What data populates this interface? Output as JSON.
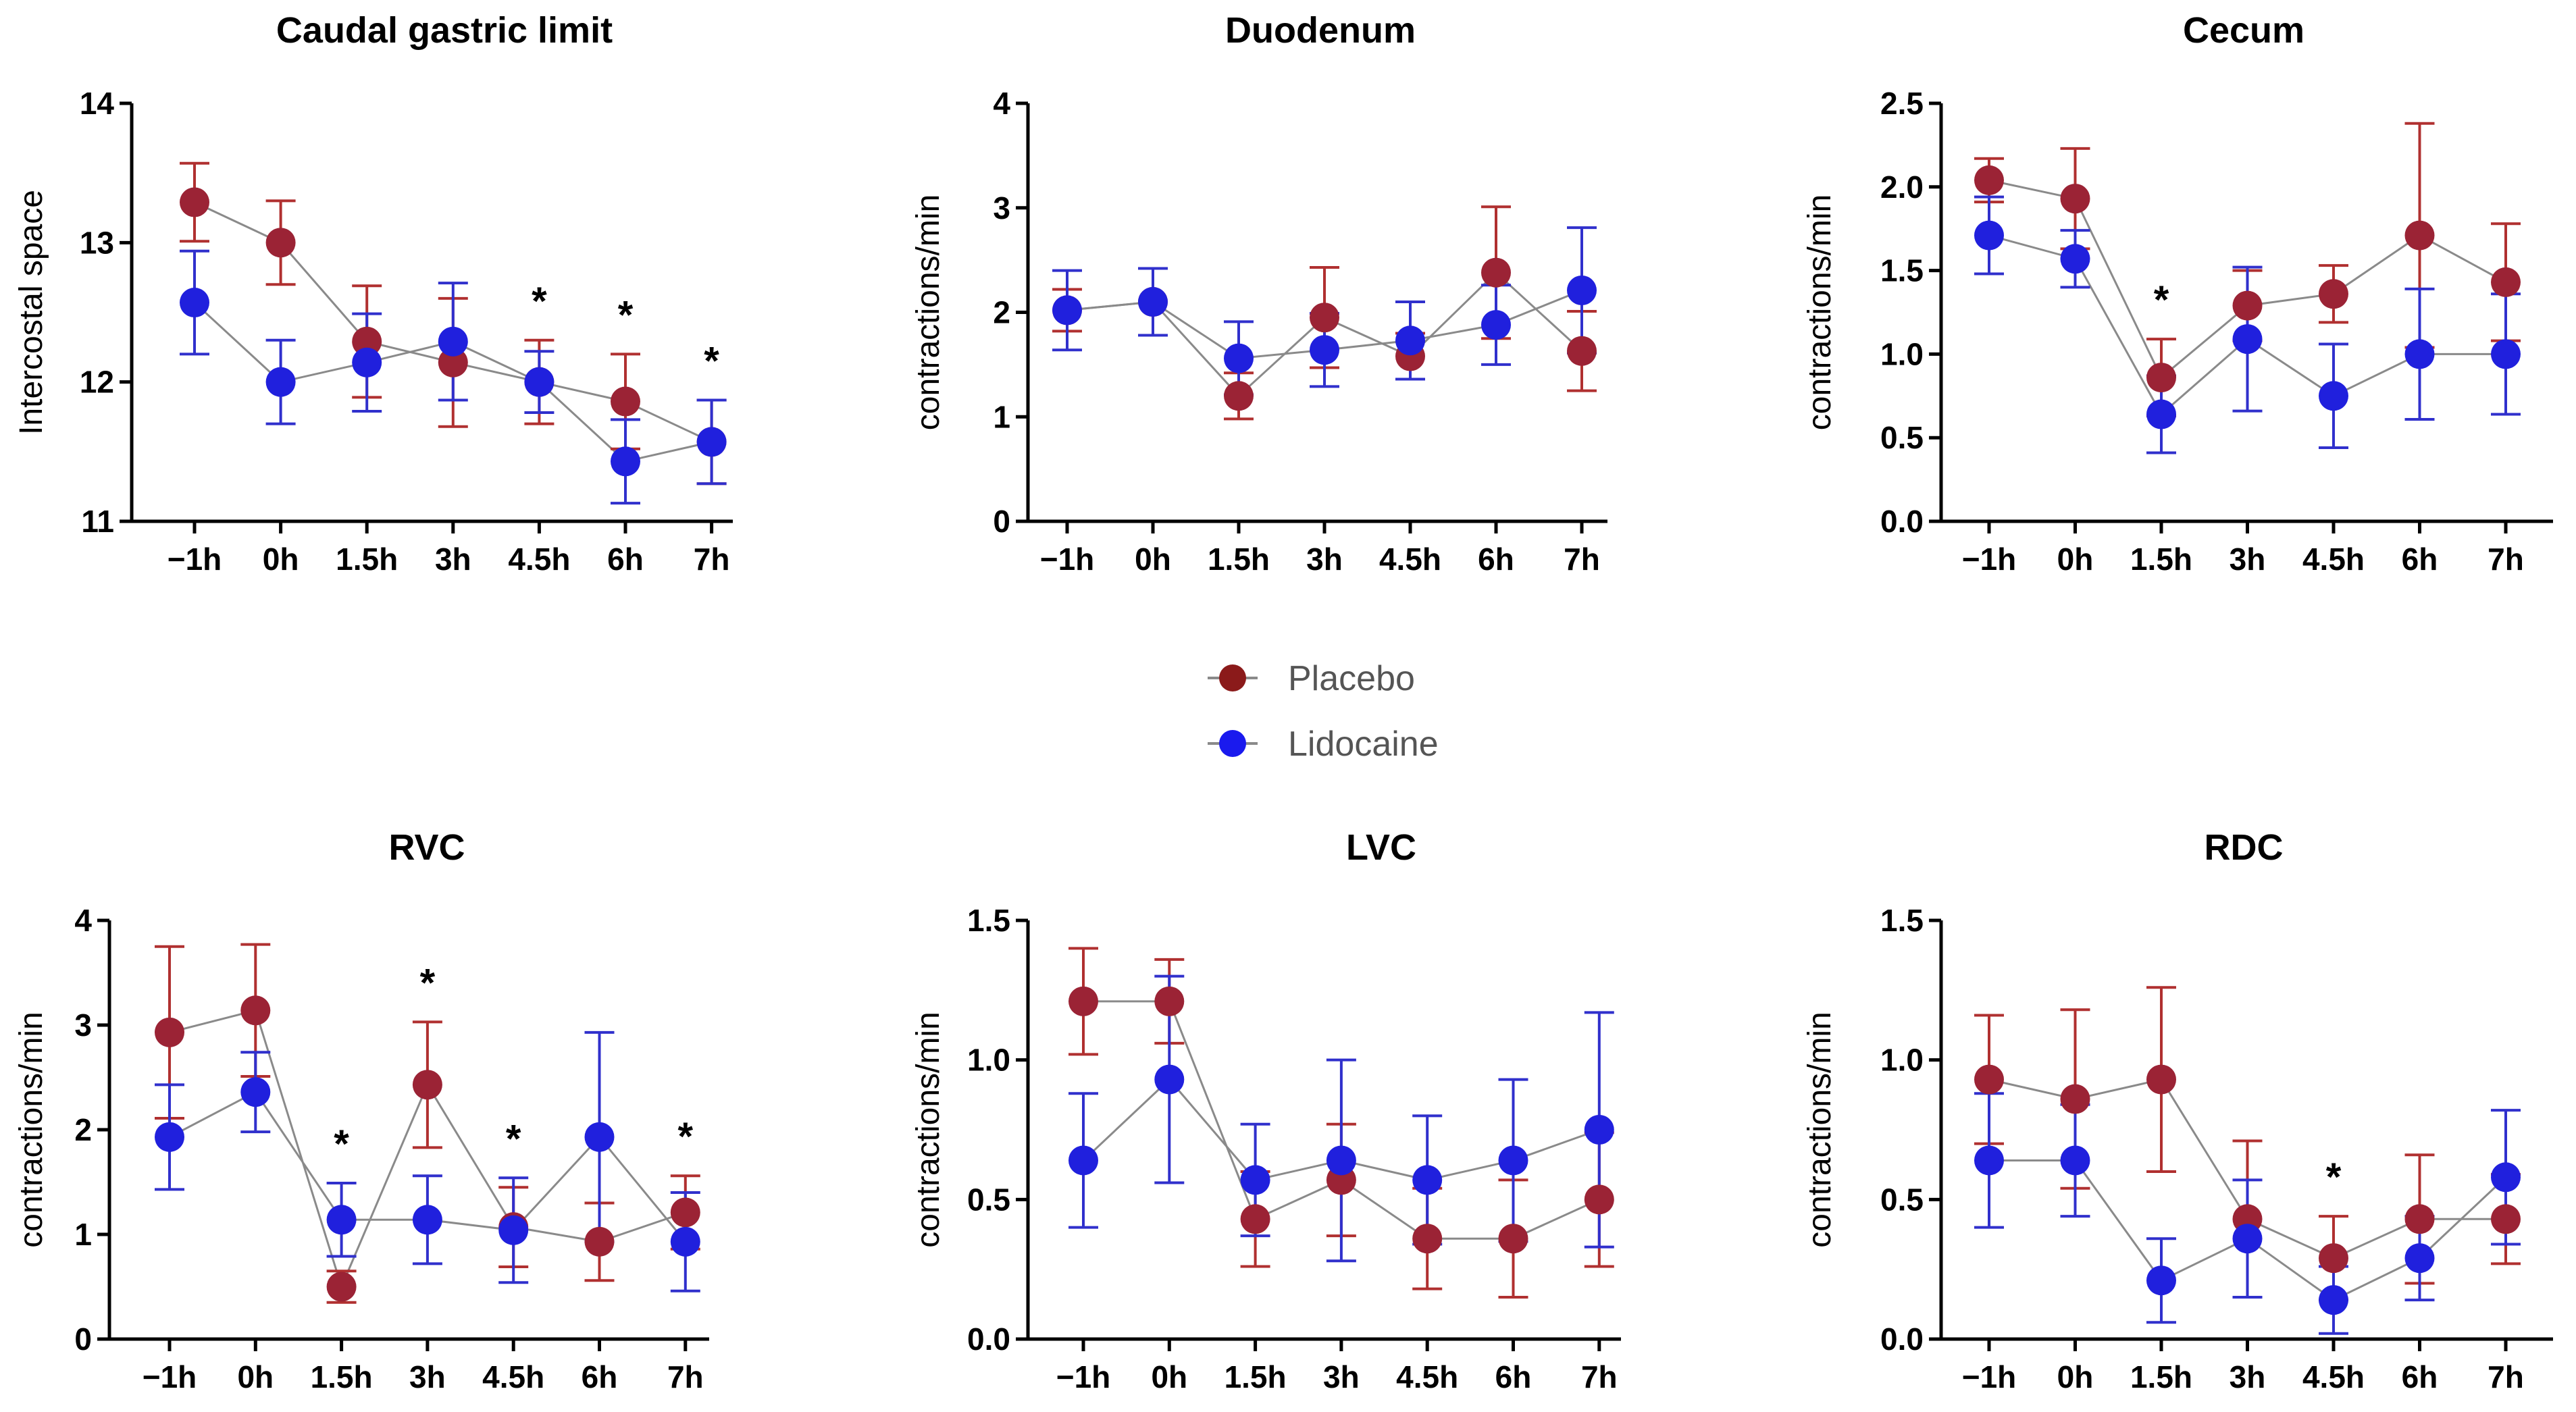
{
  "legend": {
    "items": [
      {
        "label": "Placebo",
        "color": "#8b1a1a"
      },
      {
        "label": "Lidocaine",
        "color": "#1a1aee"
      }
    ]
  },
  "colors": {
    "placebo_line": "#9b2335",
    "placebo_err": "#b03030",
    "lidocaine_line": "#2020dd",
    "lidocaine_err": "#3030cc",
    "connector": "#8a8a8a"
  },
  "chart_data": [
    {
      "type": "line",
      "title": "Caudal gastric limit",
      "ylabel": "Intercostal space",
      "categories": [
        "−1h",
        "0h",
        "1.5h",
        "3h",
        "4.5h",
        "6h",
        "7h"
      ],
      "ylim": [
        11,
        14
      ],
      "yticks": [
        "11",
        "12",
        "13",
        "14"
      ],
      "ytick_values": [
        11,
        12,
        13,
        14
      ],
      "series": [
        {
          "name": "Placebo",
          "values": [
            13.29,
            13.0,
            12.29,
            12.14,
            12.0,
            11.86,
            11.57
          ],
          "err": [
            0.28,
            0.3,
            0.4,
            0.46,
            0.3,
            0.34,
            0.3
          ]
        },
        {
          "name": "Lidocaine",
          "values": [
            12.57,
            12.0,
            12.14,
            12.29,
            12.0,
            11.43,
            11.57
          ],
          "err": [
            0.37,
            0.3,
            0.35,
            0.42,
            0.22,
            0.3,
            0.3
          ]
        }
      ],
      "significance": [
        "",
        "",
        "",
        "",
        "*",
        "*",
        "*"
      ]
    },
    {
      "type": "line",
      "title": "Duodenum",
      "ylabel": "contractions/min",
      "categories": [
        "−1h",
        "0h",
        "1.5h",
        "3h",
        "4.5h",
        "6h",
        "7h"
      ],
      "ylim": [
        0,
        4
      ],
      "yticks": [
        "0",
        "1",
        "2",
        "3",
        "4"
      ],
      "ytick_values": [
        0,
        1,
        2,
        3,
        4
      ],
      "series": [
        {
          "name": "Placebo",
          "values": [
            2.02,
            2.1,
            1.2,
            1.95,
            1.58,
            2.38,
            1.63
          ],
          "err": [
            0.2,
            0.32,
            0.22,
            0.48,
            0.22,
            0.63,
            0.38
          ]
        },
        {
          "name": "Lidocaine",
          "values": [
            2.02,
            2.1,
            1.56,
            1.64,
            1.73,
            1.88,
            2.21
          ],
          "err": [
            0.38,
            0.32,
            0.35,
            0.35,
            0.37,
            0.38,
            0.6
          ]
        }
      ],
      "significance": [
        "",
        "",
        "",
        "",
        "",
        "",
        ""
      ]
    },
    {
      "type": "line",
      "title": "Cecum",
      "ylabel": "contractions/min",
      "categories": [
        "−1h",
        "0h",
        "1.5h",
        "3h",
        "4.5h",
        "6h",
        "7h"
      ],
      "ylim": [
        0,
        2.5
      ],
      "yticks": [
        "0.0",
        "0.5",
        "1.0",
        "1.5",
        "2.0",
        "2.5"
      ],
      "ytick_values": [
        0,
        0.5,
        1.0,
        1.5,
        2.0,
        2.5
      ],
      "series": [
        {
          "name": "Placebo",
          "values": [
            2.04,
            1.93,
            0.86,
            1.29,
            1.36,
            1.71,
            1.43
          ],
          "err": [
            0.13,
            0.3,
            0.23,
            0.21,
            0.17,
            0.67,
            0.35
          ]
        },
        {
          "name": "Lidocaine",
          "values": [
            1.71,
            1.57,
            0.64,
            1.09,
            0.75,
            1.0,
            1.0
          ],
          "err": [
            0.23,
            0.17,
            0.23,
            0.43,
            0.31,
            0.39,
            0.36
          ]
        }
      ],
      "significance": [
        "",
        "",
        "*",
        "",
        "",
        "",
        ""
      ]
    },
    {
      "type": "line",
      "title": "RVC",
      "ylabel": "contractions/min",
      "categories": [
        "−1h",
        "0h",
        "1.5h",
        "3h",
        "4.5h",
        "6h",
        "7h"
      ],
      "ylim": [
        0,
        4
      ],
      "yticks": [
        "0",
        "1",
        "2",
        "3",
        "4"
      ],
      "ytick_values": [
        0,
        1,
        2,
        3,
        4
      ],
      "series": [
        {
          "name": "Placebo",
          "values": [
            2.93,
            3.14,
            0.5,
            2.43,
            1.07,
            0.93,
            1.21
          ],
          "err": [
            0.82,
            0.63,
            0.15,
            0.6,
            0.38,
            0.37,
            0.35
          ]
        },
        {
          "name": "Lidocaine",
          "values": [
            1.93,
            2.36,
            1.14,
            1.14,
            1.04,
            1.93,
            0.93
          ],
          "err": [
            0.5,
            0.38,
            0.35,
            0.42,
            0.5,
            1.0,
            0.47
          ]
        }
      ],
      "significance": [
        "",
        "",
        "*",
        "*",
        "*",
        "",
        "*"
      ]
    },
    {
      "type": "line",
      "title": "LVC",
      "ylabel": "contractions/min",
      "categories": [
        "−1h",
        "0h",
        "1.5h",
        "3h",
        "4.5h",
        "6h",
        "7h"
      ],
      "ylim": [
        0,
        1.5
      ],
      "yticks": [
        "0.0",
        "0.5",
        "1.0",
        "1.5"
      ],
      "ytick_values": [
        0,
        0.5,
        1.0,
        1.5
      ],
      "series": [
        {
          "name": "Placebo",
          "values": [
            1.21,
            1.21,
            0.43,
            0.57,
            0.36,
            0.36,
            0.5
          ],
          "err": [
            0.19,
            0.15,
            0.17,
            0.2,
            0.18,
            0.21,
            0.24
          ]
        },
        {
          "name": "Lidocaine",
          "values": [
            0.64,
            0.93,
            0.57,
            0.64,
            0.57,
            0.64,
            0.75
          ],
          "err": [
            0.24,
            0.37,
            0.2,
            0.36,
            0.23,
            0.29,
            0.42
          ]
        }
      ],
      "significance": [
        "",
        "",
        "",
        "",
        "",
        "",
        ""
      ]
    },
    {
      "type": "line",
      "title": "RDC",
      "ylabel": "contractions/min",
      "categories": [
        "−1h",
        "0h",
        "1.5h",
        "3h",
        "4.5h",
        "6h",
        "7h"
      ],
      "ylim": [
        0,
        1.5
      ],
      "yticks": [
        "0.0",
        "0.5",
        "1.0",
        "1.5"
      ],
      "ytick_values": [
        0,
        0.5,
        1.0,
        1.5
      ],
      "series": [
        {
          "name": "Placebo",
          "values": [
            0.93,
            0.86,
            0.93,
            0.43,
            0.29,
            0.43,
            0.43
          ],
          "err": [
            0.23,
            0.32,
            0.33,
            0.28,
            0.15,
            0.23,
            0.16
          ]
        },
        {
          "name": "Lidocaine",
          "values": [
            0.64,
            0.64,
            0.21,
            0.36,
            0.14,
            0.29,
            0.58
          ],
          "err": [
            0.24,
            0.2,
            0.15,
            0.21,
            0.12,
            0.15,
            0.24
          ]
        }
      ],
      "significance": [
        "",
        "",
        "",
        "",
        "*",
        "",
        ""
      ]
    }
  ]
}
